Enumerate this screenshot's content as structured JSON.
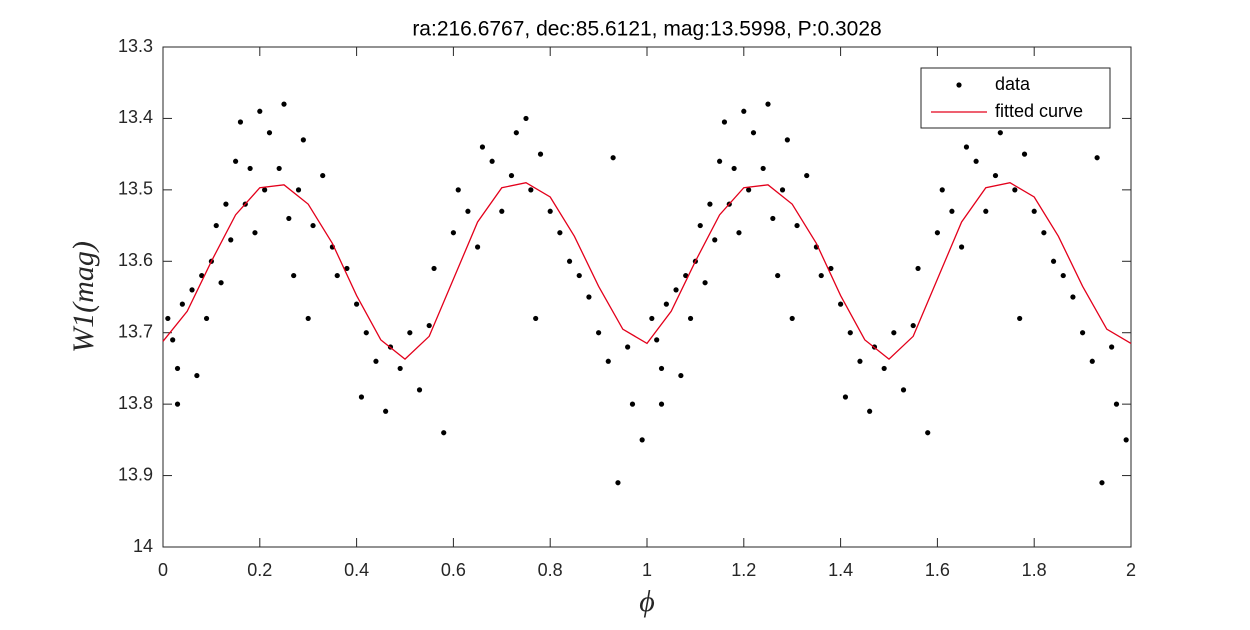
{
  "chart_data": {
    "type": "scatter",
    "title": "ra:216.6767, dec:85.6121, mag:13.5998, P:0.3028",
    "x_label": "ϕ",
    "y_label": "W1(mag)",
    "xlim": [
      0,
      2
    ],
    "xticks": [
      0,
      0.2,
      0.4,
      0.6,
      0.8,
      1,
      1.2,
      1.4,
      1.6,
      1.8,
      2
    ],
    "ylim": [
      13.3,
      14
    ],
    "y_reversed": true,
    "yticks": [
      13.3,
      13.4,
      13.5,
      13.6,
      13.7,
      13.8,
      13.9,
      14
    ],
    "legend": "upper right",
    "series": [
      {
        "name": "data",
        "type": "scatter",
        "color": "#000000",
        "x": [
          0.01,
          0.02,
          0.03,
          0.03,
          0.04,
          0.06,
          0.07,
          0.08,
          0.09,
          0.1,
          0.11,
          0.12,
          0.13,
          0.14,
          0.15,
          0.16,
          0.17,
          0.18,
          0.19,
          0.2,
          0.21,
          0.22,
          0.24,
          0.25,
          0.26,
          0.27,
          0.28,
          0.29,
          0.3,
          0.31,
          0.33,
          0.35,
          0.36,
          0.38,
          0.4,
          0.41,
          0.42,
          0.44,
          0.46,
          0.47,
          0.49,
          0.51,
          0.53,
          0.55,
          0.56,
          0.58,
          0.6,
          0.61,
          0.63,
          0.65,
          0.66,
          0.68,
          0.7,
          0.72,
          0.73,
          0.75,
          0.76,
          0.77,
          0.78,
          0.8,
          0.82,
          0.84,
          0.86,
          0.88,
          0.9,
          0.92,
          0.93,
          0.94,
          0.96,
          0.97,
          0.99,
          1.01,
          1.02,
          1.03,
          1.03,
          1.04,
          1.06,
          1.07,
          1.08,
          1.09,
          1.1,
          1.11,
          1.12,
          1.13,
          1.14,
          1.15,
          1.16,
          1.17,
          1.18,
          1.19,
          1.2,
          1.21,
          1.22,
          1.24,
          1.25,
          1.26,
          1.27,
          1.28,
          1.29,
          1.3,
          1.31,
          1.33,
          1.35,
          1.36,
          1.38,
          1.4,
          1.41,
          1.42,
          1.44,
          1.46,
          1.47,
          1.49,
          1.51,
          1.53,
          1.55,
          1.56,
          1.58,
          1.6,
          1.61,
          1.63,
          1.65,
          1.66,
          1.68,
          1.7,
          1.72,
          1.73,
          1.75,
          1.76,
          1.77,
          1.78,
          1.8,
          1.82,
          1.84,
          1.86,
          1.88,
          1.9,
          1.92,
          1.93,
          1.94,
          1.96,
          1.97,
          1.99
        ],
        "values": [
          13.68,
          13.71,
          13.75,
          13.8,
          13.66,
          13.64,
          13.76,
          13.62,
          13.68,
          13.6,
          13.55,
          13.63,
          13.52,
          13.57,
          13.46,
          13.405,
          13.52,
          13.47,
          13.56,
          13.39,
          13.5,
          13.42,
          13.47,
          13.38,
          13.54,
          13.62,
          13.5,
          13.43,
          13.68,
          13.55,
          13.48,
          13.58,
          13.62,
          13.61,
          13.66,
          13.79,
          13.7,
          13.74,
          13.81,
          13.72,
          13.75,
          13.7,
          13.78,
          13.69,
          13.61,
          13.84,
          13.56,
          13.5,
          13.53,
          13.58,
          13.44,
          13.46,
          13.53,
          13.48,
          13.42,
          13.4,
          13.5,
          13.68,
          13.45,
          13.53,
          13.56,
          13.6,
          13.62,
          13.65,
          13.7,
          13.74,
          13.455,
          13.91,
          13.72,
          13.8,
          13.85,
          13.68,
          13.71,
          13.75,
          13.8,
          13.66,
          13.64,
          13.76,
          13.62,
          13.68,
          13.6,
          13.55,
          13.63,
          13.52,
          13.57,
          13.46,
          13.405,
          13.52,
          13.47,
          13.56,
          13.39,
          13.5,
          13.42,
          13.47,
          13.38,
          13.54,
          13.62,
          13.5,
          13.43,
          13.68,
          13.55,
          13.48,
          13.58,
          13.62,
          13.61,
          13.66,
          13.79,
          13.7,
          13.74,
          13.81,
          13.72,
          13.75,
          13.7,
          13.78,
          13.69,
          13.61,
          13.84,
          13.56,
          13.5,
          13.53,
          13.58,
          13.44,
          13.46,
          13.53,
          13.48,
          13.42,
          13.4,
          13.5,
          13.68,
          13.45,
          13.53,
          13.56,
          13.6,
          13.62,
          13.65,
          13.7,
          13.74,
          13.455,
          13.91,
          13.72,
          13.8,
          13.85
        ]
      },
      {
        "name": "fitted curve",
        "type": "line",
        "color": "#e3001b",
        "x": [
          0,
          0.05,
          0.1,
          0.15,
          0.2,
          0.25,
          0.3,
          0.35,
          0.4,
          0.45,
          0.5,
          0.55,
          0.6,
          0.65,
          0.7,
          0.75,
          0.8,
          0.85,
          0.9,
          0.95,
          1,
          1.05,
          1.1,
          1.15,
          1.2,
          1.25,
          1.3,
          1.35,
          1.4,
          1.45,
          1.5,
          1.55,
          1.6,
          1.65,
          1.7,
          1.75,
          1.8,
          1.85,
          1.9,
          1.95,
          2
        ],
        "values": [
          13.712,
          13.67,
          13.6,
          13.535,
          13.497,
          13.493,
          13.52,
          13.575,
          13.648,
          13.71,
          13.737,
          13.705,
          13.625,
          13.545,
          13.497,
          13.49,
          13.51,
          13.565,
          13.635,
          13.695,
          13.715,
          13.67,
          13.6,
          13.535,
          13.497,
          13.493,
          13.52,
          13.575,
          13.648,
          13.71,
          13.737,
          13.705,
          13.625,
          13.545,
          13.497,
          13.49,
          13.51,
          13.565,
          13.635,
          13.695,
          13.715
        ]
      }
    ]
  }
}
